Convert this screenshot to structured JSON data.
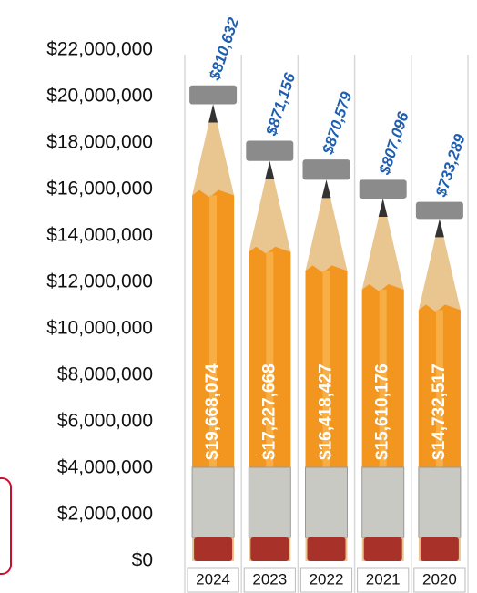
{
  "chart_data": {
    "type": "bar",
    "categories": [
      "2024",
      "2023",
      "2022",
      "2021",
      "2020"
    ],
    "series": [
      {
        "color": "#f2961f",
        "values": [
          19668074,
          17227668,
          16418427,
          15610176,
          14732517
        ],
        "value_labels": [
          "$19,668,074",
          "$17,227,668",
          "$16,418,427",
          "$15,610,176",
          "$14,732,517"
        ]
      },
      {
        "color": "#777777",
        "values": [
          810632,
          871156,
          870579,
          807096,
          733289
        ],
        "value_labels": [
          "$810,632",
          "$871,156",
          "$870,579",
          "$807,096",
          "$733,289"
        ]
      }
    ],
    "ylim": [
      0,
      22000000
    ],
    "yticks": [
      {
        "value": 0,
        "label": "$0"
      },
      {
        "value": 2000000,
        "label": "$2,000,000"
      },
      {
        "value": 4000000,
        "label": "$4,000,000"
      },
      {
        "value": 6000000,
        "label": "$6,000,000"
      },
      {
        "value": 8000000,
        "label": "$8,000,000"
      },
      {
        "value": 10000000,
        "label": "$10,000,000"
      },
      {
        "value": 12000000,
        "label": "$12,000,000"
      },
      {
        "value": 14000000,
        "label": "$14,000,000"
      },
      {
        "value": 16000000,
        "label": "$16,000,000"
      },
      {
        "value": 18000000,
        "label": "$18,000,000"
      },
      {
        "value": 20000000,
        "label": "$20,000,000"
      },
      {
        "value": 22000000,
        "label": "$22,000,000"
      }
    ]
  }
}
